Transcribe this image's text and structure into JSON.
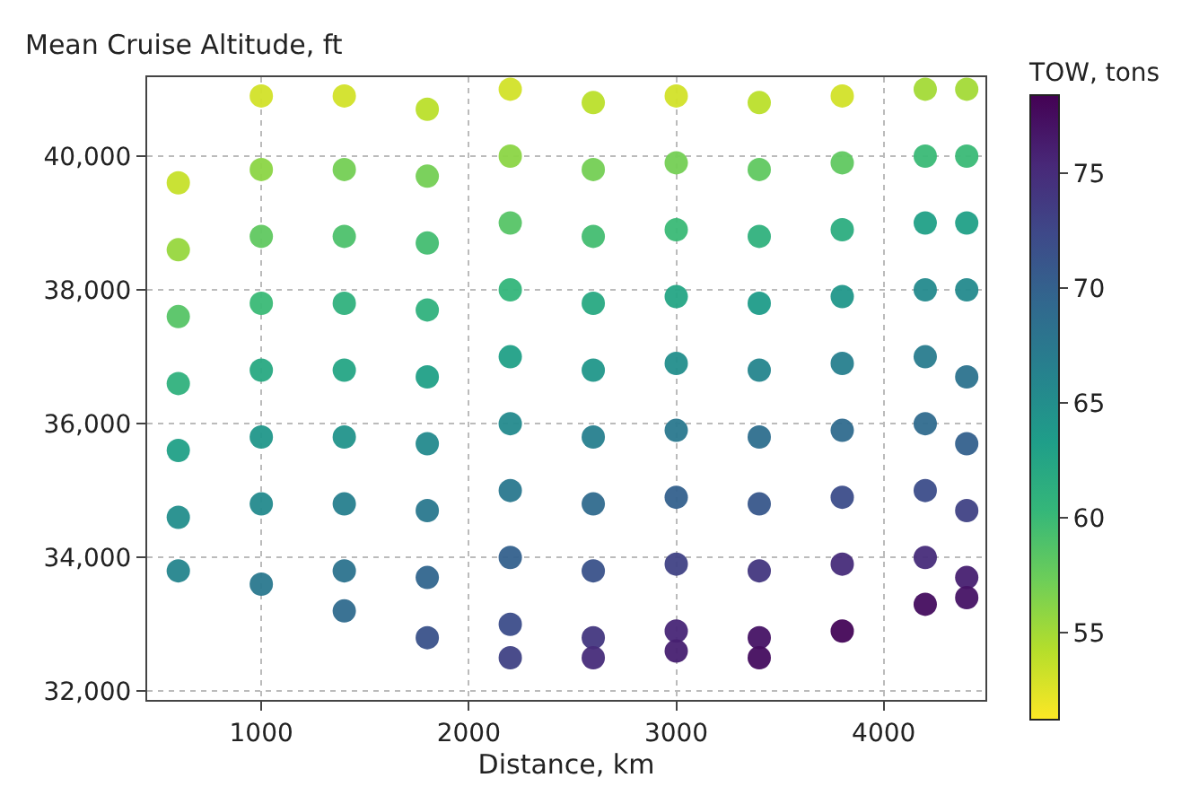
{
  "chart_data": {
    "type": "scatter",
    "xlabel": "Distance, km",
    "ylabel": "Mean Cruise Altitude, ft",
    "clabel": "TOW, tons",
    "xlim": [
      450,
      4490
    ],
    "ylim": [
      31870,
      41180
    ],
    "xticks": [
      1000,
      2000,
      3000,
      4000
    ],
    "yticks": [
      {
        "value": 32000,
        "label": "32,000"
      },
      {
        "value": 34000,
        "label": "34,000"
      },
      {
        "value": 36000,
        "label": "36,000"
      },
      {
        "value": 38000,
        "label": "38,000"
      },
      {
        "value": 40000,
        "label": "40,000"
      }
    ],
    "clim": [
      51.2,
      78.4
    ],
    "cticks": [
      55,
      60,
      65,
      70,
      75
    ],
    "grid": true,
    "marker": "circle",
    "x": [
      600,
      600,
      600,
      600,
      600,
      600,
      600,
      1000,
      1000,
      1000,
      1000,
      1000,
      1000,
      1000,
      1000,
      1400,
      1400,
      1400,
      1400,
      1400,
      1400,
      1400,
      1400,
      1400,
      1800,
      1800,
      1800,
      1800,
      1800,
      1800,
      1800,
      1800,
      1800,
      2200,
      2200,
      2200,
      2200,
      2200,
      2200,
      2200,
      2200,
      2200,
      2200,
      2600,
      2600,
      2600,
      2600,
      2600,
      2600,
      2600,
      2600,
      2600,
      2600,
      3000,
      3000,
      3000,
      3000,
      3000,
      3000,
      3000,
      3000,
      3000,
      3000,
      3400,
      3400,
      3400,
      3400,
      3400,
      3400,
      3400,
      3400,
      3400,
      3400,
      3800,
      3800,
      3800,
      3800,
      3800,
      3800,
      3800,
      3800,
      3800,
      4200,
      4200,
      4200,
      4200,
      4200,
      4200,
      4200,
      4200,
      4200,
      4400,
      4400,
      4400,
      4400,
      4400,
      4400,
      4400,
      4400,
      4400
    ],
    "values": [
      39600,
      38600,
      37600,
      36600,
      35600,
      34600,
      33800,
      40900,
      39800,
      38800,
      37800,
      36800,
      35800,
      34800,
      33600,
      40900,
      39800,
      38800,
      37800,
      36800,
      35800,
      34800,
      33800,
      33200,
      40700,
      39700,
      38700,
      37700,
      36700,
      35700,
      34700,
      33700,
      32800,
      41000,
      40000,
      39000,
      38000,
      37000,
      36000,
      35000,
      34000,
      33000,
      32500,
      40800,
      39800,
      38800,
      37800,
      36800,
      35800,
      34800,
      33800,
      32800,
      32500,
      40900,
      39900,
      38900,
      37900,
      36900,
      35900,
      34900,
      33900,
      32900,
      32600,
      40800,
      39800,
      38800,
      37800,
      36800,
      35800,
      34800,
      33800,
      32800,
      32500,
      40900,
      39900,
      38900,
      37900,
      36900,
      35900,
      34900,
      33900,
      32900,
      41000,
      40000,
      39000,
      38000,
      37000,
      36000,
      35000,
      34000,
      33300,
      41000,
      40000,
      39000,
      38000,
      36700,
      35700,
      34700,
      33700,
      33400
    ],
    "cvalues": [
      53.5,
      55.5,
      58.5,
      61,
      63,
      65,
      66,
      53,
      56,
      58,
      60,
      62,
      64,
      65.5,
      67.5,
      53,
      57,
      59,
      61,
      62.5,
      64.5,
      66.5,
      68,
      69,
      54,
      57,
      59.5,
      61,
      63,
      65.5,
      67.5,
      69.5,
      71.5,
      53,
      56,
      58.5,
      60.5,
      63,
      65.5,
      67.5,
      70,
      72,
      73,
      54,
      57,
      59.5,
      62,
      64,
      66.5,
      69,
      71.5,
      74,
      75,
      53,
      57,
      60,
      62.5,
      65,
      67.5,
      70,
      73,
      75.5,
      76,
      54,
      58,
      61,
      63.5,
      66,
      68.5,
      71,
      74,
      77,
      77.5,
      53,
      58,
      61.5,
      64,
      66.5,
      69,
      72,
      75,
      78,
      55,
      60,
      63,
      65.5,
      67,
      69,
      72,
      75,
      77.5,
      55,
      60,
      63,
      65.5,
      68,
      70,
      73,
      76,
      77
    ]
  }
}
